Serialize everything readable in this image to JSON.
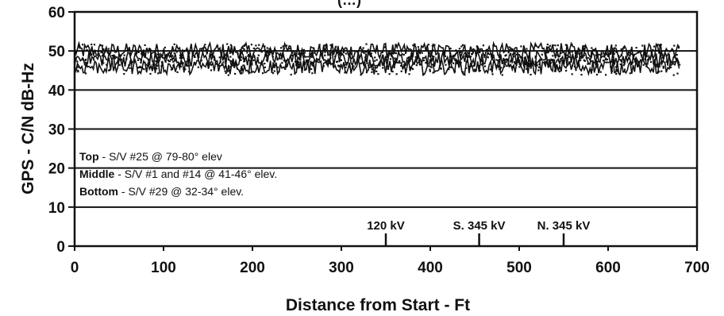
{
  "chart_data": {
    "type": "scatter",
    "title": "(…)",
    "xlabel": "Distance from Start - Ft",
    "ylabel": "GPS - C/N dB-Hz",
    "xlim": [
      0,
      700
    ],
    "ylim": [
      0,
      60
    ],
    "x_ticks": [
      "0",
      "100",
      "200",
      "300",
      "400",
      "500",
      "600",
      "700"
    ],
    "y_ticks": [
      "0",
      "10",
      "20",
      "30",
      "40",
      "50",
      "60"
    ],
    "grid": "horizontal",
    "legend_lines": [
      {
        "label": "Top",
        "text": " - S/V #25 @ 79-80° elev"
      },
      {
        "label": "Middle",
        "text": " - S/V #1 and #14 @ 41-46° elev."
      },
      {
        "label": "Bottom",
        "text": " - S/V #29 @ 32-34° elev."
      }
    ],
    "annotations": [
      {
        "label": "120 kV",
        "x": 350
      },
      {
        "label": "S. 345 kV",
        "x": 455
      },
      {
        "label": "N. 345 kV",
        "x": 550
      }
    ],
    "series": [
      {
        "name": "Top",
        "x_range": [
          0,
          680
        ],
        "values_range": [
          48,
          52
        ],
        "mean": 50
      },
      {
        "name": "Middle",
        "x_range": [
          0,
          680
        ],
        "values_range": [
          46,
          50
        ],
        "mean": 48
      },
      {
        "name": "Bottom",
        "x_range": [
          0,
          680
        ],
        "values_range": [
          44,
          48
        ],
        "mean": 46
      }
    ]
  }
}
